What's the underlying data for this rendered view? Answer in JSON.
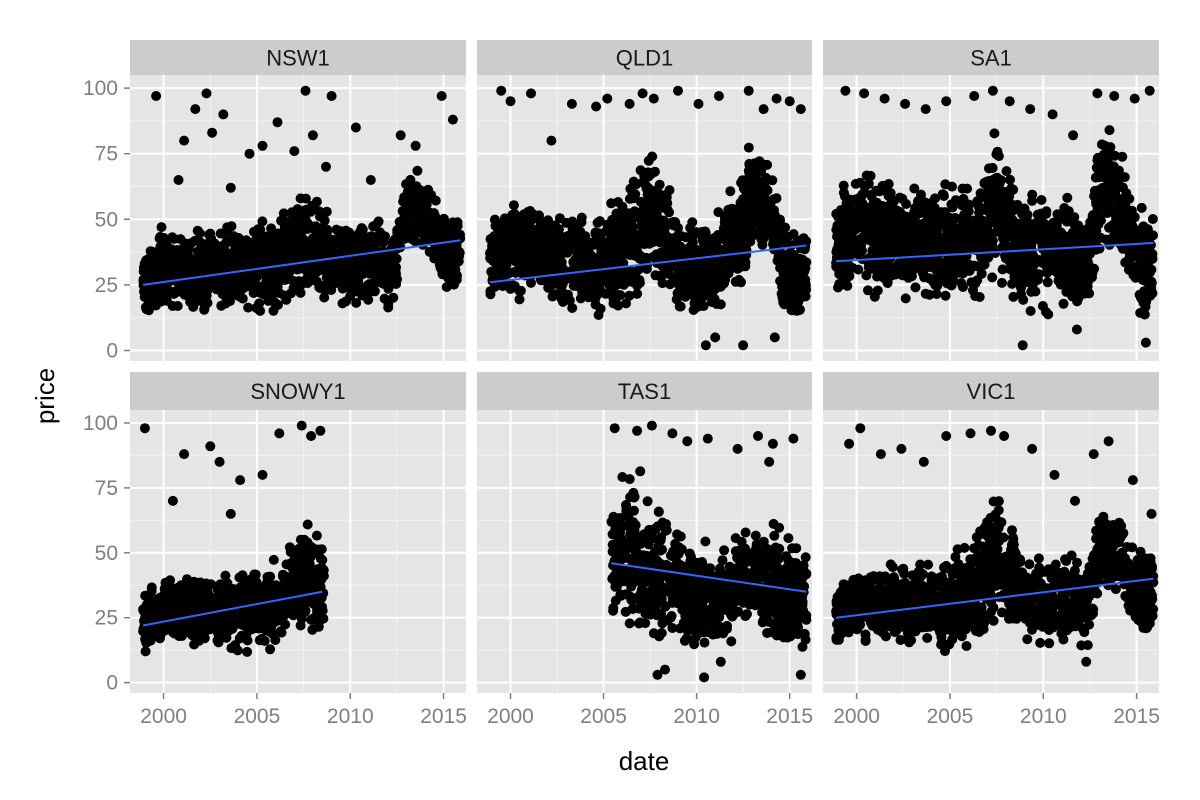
{
  "chart_data": {
    "type": "scatter",
    "facet_layout": "2 rows x 3 columns, shared axes",
    "xlabel": "date",
    "ylabel": "price",
    "xlim": [
      1998.2,
      2016.2
    ],
    "ylim": [
      -4,
      105
    ],
    "x_ticks": [
      2000,
      2005,
      2010,
      2015
    ],
    "y_ticks": [
      0,
      25,
      50,
      75,
      100
    ],
    "grid": true,
    "colors": {
      "panel_background": "#e5e5e5",
      "strip_background": "#cccccc",
      "grid_major": "#ffffff",
      "grid_minor": "#f2f2f2",
      "points": "#000000",
      "trend_line": "#3366ff"
    },
    "panels": [
      {
        "name": "NSW1",
        "date_range": [
          1998.9,
          2015.9
        ],
        "trend": {
          "x": [
            1998.9,
            2015.9
          ],
          "y": [
            25,
            42
          ]
        },
        "envelope": [
          [
            1999,
            12,
            40
          ],
          [
            2000,
            12,
            50
          ],
          [
            2002,
            12,
            48
          ],
          [
            2004,
            12,
            52
          ],
          [
            2006,
            13,
            55
          ],
          [
            2007.5,
            15,
            65
          ],
          [
            2009,
            14,
            55
          ],
          [
            2011,
            14,
            52
          ],
          [
            2012.4,
            14,
            50
          ],
          [
            2013,
            35,
            75
          ],
          [
            2014,
            35,
            70
          ],
          [
            2014.7,
            25,
            60
          ],
          [
            2015.2,
            18,
            55
          ],
          [
            2015.9,
            20,
            55
          ]
        ],
        "outliers": [
          [
            1999.6,
            97
          ],
          [
            2001.1,
            80
          ],
          [
            2001.7,
            92
          ],
          [
            2002.3,
            98
          ],
          [
            2002.6,
            83
          ],
          [
            2003.2,
            90
          ],
          [
            2004.6,
            75
          ],
          [
            2005.3,
            78
          ],
          [
            2006.1,
            87
          ],
          [
            2007.0,
            76
          ],
          [
            2007.6,
            99
          ],
          [
            2008.0,
            82
          ],
          [
            2009.0,
            97
          ],
          [
            2010.3,
            85
          ],
          [
            2012.7,
            82
          ],
          [
            2013.5,
            78
          ],
          [
            2014.9,
            97
          ],
          [
            2015.5,
            88
          ],
          [
            2000.8,
            65
          ],
          [
            2003.6,
            62
          ],
          [
            2008.7,
            70
          ],
          [
            2011.1,
            65
          ]
        ]
      },
      {
        "name": "QLD1",
        "date_range": [
          1998.9,
          2015.9
        ],
        "trend": {
          "x": [
            1998.9,
            2015.9
          ],
          "y": [
            26,
            40
          ]
        },
        "envelope": [
          [
            1999,
            15,
            55
          ],
          [
            2000,
            14,
            65
          ],
          [
            2002,
            12,
            60
          ],
          [
            2004,
            12,
            55
          ],
          [
            2006,
            12,
            60
          ],
          [
            2007.5,
            15,
            90
          ],
          [
            2009,
            12,
            55
          ],
          [
            2011,
            10,
            55
          ],
          [
            2012.4,
            20,
            75
          ],
          [
            2013,
            35,
            85
          ],
          [
            2014,
            30,
            75
          ],
          [
            2014.8,
            5,
            55
          ],
          [
            2015.2,
            5,
            50
          ],
          [
            2015.9,
            10,
            50
          ]
        ],
        "outliers": [
          [
            1999.5,
            99
          ],
          [
            2000.0,
            95
          ],
          [
            2001.1,
            98
          ],
          [
            2002.2,
            80
          ],
          [
            2003.3,
            94
          ],
          [
            2004.6,
            93
          ],
          [
            2005.2,
            96
          ],
          [
            2006.4,
            94
          ],
          [
            2007.1,
            98
          ],
          [
            2007.7,
            96
          ],
          [
            2009.0,
            99
          ],
          [
            2010.1,
            94
          ],
          [
            2011.2,
            97
          ],
          [
            2012.8,
            99
          ],
          [
            2013.6,
            92
          ],
          [
            2014.3,
            96
          ],
          [
            2015.0,
            95
          ],
          [
            2015.6,
            92
          ],
          [
            2011.0,
            5
          ],
          [
            2012.5,
            2
          ],
          [
            2014.2,
            5
          ],
          [
            2010.5,
            2
          ]
        ]
      },
      {
        "name": "SA1",
        "date_range": [
          1998.9,
          2015.9
        ],
        "trend": {
          "x": [
            1998.9,
            2015.9
          ],
          "y": [
            34,
            41
          ]
        },
        "envelope": [
          [
            1999,
            15,
            65
          ],
          [
            2000,
            15,
            75
          ],
          [
            2002,
            14,
            70
          ],
          [
            2004,
            14,
            65
          ],
          [
            2006,
            14,
            70
          ],
          [
            2007.5,
            15,
            90
          ],
          [
            2009,
            12,
            65
          ],
          [
            2011,
            10,
            65
          ],
          [
            2012.4,
            10,
            60
          ],
          [
            2013,
            30,
            95
          ],
          [
            2014,
            32,
            85
          ],
          [
            2014.7,
            20,
            65
          ],
          [
            2015.3,
            5,
            60
          ],
          [
            2015.9,
            8,
            60
          ]
        ],
        "outliers": [
          [
            1999.4,
            99
          ],
          [
            2000.4,
            98
          ],
          [
            2001.5,
            96
          ],
          [
            2002.6,
            94
          ],
          [
            2003.7,
            92
          ],
          [
            2004.8,
            95
          ],
          [
            2006.3,
            97
          ],
          [
            2007.3,
            99
          ],
          [
            2008.2,
            95
          ],
          [
            2009.3,
            92
          ],
          [
            2010.5,
            90
          ],
          [
            2011.6,
            82
          ],
          [
            2012.9,
            98
          ],
          [
            2013.8,
            97
          ],
          [
            2014.9,
            96
          ],
          [
            2015.7,
            99
          ],
          [
            2008.9,
            2
          ],
          [
            2015.5,
            3
          ],
          [
            2011.8,
            8
          ]
        ]
      },
      {
        "name": "SNOWY1",
        "date_range": [
          1998.9,
          2008.6
        ],
        "trend": {
          "x": [
            1998.9,
            2008.5
          ],
          "y": [
            22,
            35
          ]
        },
        "envelope": [
          [
            1999,
            10,
            35
          ],
          [
            2000,
            10,
            45
          ],
          [
            2002,
            10,
            45
          ],
          [
            2004,
            10,
            45
          ],
          [
            2006,
            12,
            50
          ],
          [
            2007.5,
            15,
            65
          ],
          [
            2008.5,
            12,
            60
          ]
        ],
        "outliers": [
          [
            1999.0,
            98
          ],
          [
            2001.1,
            88
          ],
          [
            2002.5,
            91
          ],
          [
            2003.0,
            85
          ],
          [
            2004.1,
            78
          ],
          [
            2005.3,
            80
          ],
          [
            2006.2,
            96
          ],
          [
            2007.4,
            99
          ],
          [
            2007.9,
            95
          ],
          [
            2008.4,
            97
          ],
          [
            2000.5,
            70
          ],
          [
            2003.6,
            65
          ]
        ]
      },
      {
        "name": "TAS1",
        "date_range": [
          2005.4,
          2015.9
        ],
        "trend": {
          "x": [
            2005.4,
            2015.9
          ],
          "y": [
            46,
            35
          ]
        },
        "envelope": [
          [
            2005.5,
            20,
            80
          ],
          [
            2006.5,
            12,
            85
          ],
          [
            2007.5,
            8,
            80
          ],
          [
            2008.5,
            10,
            70
          ],
          [
            2009.5,
            10,
            60
          ],
          [
            2010.5,
            10,
            55
          ],
          [
            2011.5,
            10,
            55
          ],
          [
            2012.5,
            15,
            65
          ],
          [
            2013.5,
            12,
            70
          ],
          [
            2014.5,
            8,
            65
          ],
          [
            2015.9,
            5,
            60
          ]
        ],
        "outliers": [
          [
            2005.6,
            98
          ],
          [
            2006.8,
            97
          ],
          [
            2007.6,
            99
          ],
          [
            2008.7,
            96
          ],
          [
            2009.5,
            93
          ],
          [
            2010.6,
            94
          ],
          [
            2012.2,
            90
          ],
          [
            2013.3,
            95
          ],
          [
            2014.1,
            92
          ],
          [
            2015.2,
            94
          ],
          [
            2008.3,
            5
          ],
          [
            2010.4,
            2
          ],
          [
            2011.3,
            8
          ],
          [
            2015.6,
            3
          ],
          [
            2007.9,
            3
          ],
          [
            2013.9,
            85
          ]
        ]
      },
      {
        "name": "VIC1",
        "date_range": [
          1998.9,
          2015.9
        ],
        "trend": {
          "x": [
            1998.9,
            2015.9
          ],
          "y": [
            25,
            40
          ]
        },
        "envelope": [
          [
            1999,
            12,
            40
          ],
          [
            2000,
            12,
            50
          ],
          [
            2002,
            10,
            48
          ],
          [
            2004,
            10,
            50
          ],
          [
            2006,
            12,
            55
          ],
          [
            2007.5,
            15,
            80
          ],
          [
            2009,
            12,
            55
          ],
          [
            2011,
            10,
            52
          ],
          [
            2012.4,
            10,
            50
          ],
          [
            2013,
            30,
            75
          ],
          [
            2014,
            30,
            70
          ],
          [
            2014.7,
            20,
            60
          ],
          [
            2015.3,
            12,
            55
          ],
          [
            2015.9,
            15,
            55
          ]
        ],
        "outliers": [
          [
            1999.6,
            92
          ],
          [
            2000.2,
            98
          ],
          [
            2001.3,
            88
          ],
          [
            2002.4,
            90
          ],
          [
            2003.6,
            85
          ],
          [
            2004.8,
            95
          ],
          [
            2006.1,
            96
          ],
          [
            2007.2,
            97
          ],
          [
            2007.9,
            95
          ],
          [
            2009.4,
            90
          ],
          [
            2010.6,
            80
          ],
          [
            2011.7,
            70
          ],
          [
            2012.7,
            88
          ],
          [
            2013.5,
            93
          ],
          [
            2014.8,
            78
          ],
          [
            2015.8,
            65
          ],
          [
            2012.3,
            8
          ]
        ]
      }
    ]
  }
}
